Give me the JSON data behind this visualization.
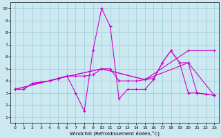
{
  "xlabel": "Windchill (Refroidissement éolien,°C)",
  "background_color": "#cce8f0",
  "grid_color": "#99ccdd",
  "line_color": "#cc00cc",
  "xlim": [
    -0.5,
    23.5
  ],
  "ylim": [
    0.5,
    10.5
  ],
  "xticks": [
    0,
    1,
    2,
    3,
    4,
    5,
    6,
    7,
    8,
    9,
    10,
    11,
    12,
    13,
    14,
    15,
    16,
    17,
    18,
    19,
    20,
    21,
    22,
    23
  ],
  "yticks": [
    1,
    2,
    3,
    4,
    5,
    6,
    7,
    8,
    9,
    10
  ],
  "line1_x": [
    0,
    1,
    2,
    3,
    4,
    5,
    6,
    7,
    8,
    9,
    10,
    11,
    12,
    13,
    14,
    15,
    16,
    17,
    18,
    19,
    20,
    21,
    22,
    23
  ],
  "line1_y": [
    3.3,
    3.3,
    3.8,
    3.9,
    4.0,
    4.2,
    4.4,
    3.0,
    1.5,
    6.5,
    10.0,
    8.5,
    2.5,
    3.3,
    3.3,
    3.3,
    4.1,
    5.5,
    6.5,
    5.5,
    3.0,
    3.0,
    2.9,
    2.8
  ],
  "line2_x": [
    0,
    1,
    2,
    3,
    4,
    5,
    6,
    7,
    8,
    9,
    10,
    11,
    12,
    13,
    14,
    15,
    16,
    17,
    18,
    19,
    20,
    21,
    22,
    23
  ],
  "line2_y": [
    3.3,
    3.3,
    3.8,
    3.9,
    4.0,
    4.2,
    4.4,
    4.4,
    4.4,
    4.5,
    5.0,
    5.0,
    4.0,
    4.0,
    4.0,
    4.1,
    4.2,
    5.5,
    6.5,
    5.5,
    5.5,
    3.0,
    2.9,
    2.8
  ],
  "line3_x": [
    0,
    5,
    10,
    15,
    20,
    23
  ],
  "line3_y": [
    3.3,
    4.2,
    5.0,
    4.1,
    5.5,
    2.8
  ],
  "line4_x": [
    0,
    5,
    10,
    15,
    20,
    23
  ],
  "line4_y": [
    3.3,
    4.2,
    5.0,
    4.1,
    6.5,
    6.5
  ]
}
